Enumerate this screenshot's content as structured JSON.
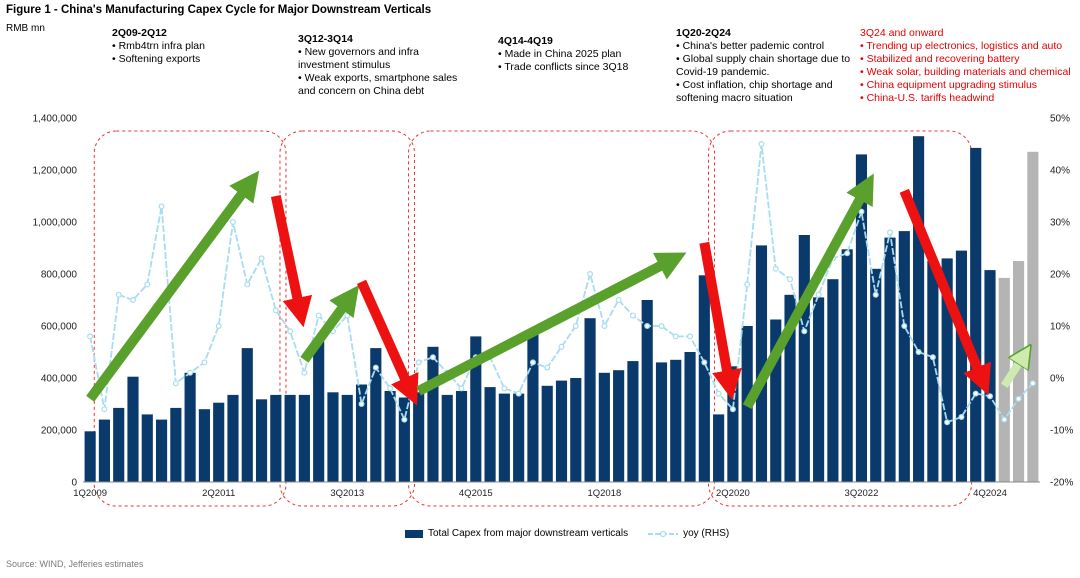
{
  "figure_title": "Figure 1 - China's Manufacturing Capex Cycle for Major Downstream Verticals",
  "unit_label": "RMB mn",
  "source": "Source: WIND, Jefferies estimates",
  "annotations": [
    {
      "heading": "2Q09-2Q12",
      "lines": [
        "• Rmb4trn infra plan",
        "• Softening exports"
      ]
    },
    {
      "heading": "3Q12-3Q14",
      "lines": [
        "• New governors and infra",
        "investment stimulus",
        "• Weak exports, smartphone sales",
        "and concern on China debt"
      ]
    },
    {
      "heading": "4Q14-4Q19",
      "lines": [
        "• Made in China 2025 plan",
        "• Trade conflicts since 3Q18"
      ]
    },
    {
      "heading": "1Q20-2Q24",
      "lines": [
        "• China's better pademic control",
        "• Global supply chain shortage due to",
        "Covid-19 pandemic.",
        "• Cost inflation, chip shortage and",
        "softening macro situation"
      ]
    },
    {
      "heading": "3Q24 and onward",
      "lines": [
        "• Trending up electronics, logistics and auto",
        "• Stabilized and recovering battery",
        "• Weak solar, building materials and chemical",
        "• China equipment upgrading stimulus",
        "• China-U.S. tariffs headwind"
      ]
    }
  ],
  "colors": {
    "bar": "#0a3a6b",
    "bar_forecast": "#b4b4b4",
    "yoy_line": "#a8dcf0",
    "up_arrow": "#5aa02c",
    "down_arrow": "#ee1111",
    "forecast_arrow": "#cdeab0",
    "box": "#ee3333",
    "axis_text": "#222222"
  },
  "legend": {
    "bars": "Total Capex from major downstream verticals",
    "line": "yoy (RHS)"
  },
  "chart_data": {
    "type": "bar",
    "quarters": [
      "1Q2009",
      "2Q2009",
      "3Q2009",
      "4Q2009",
      "1Q2010",
      "2Q2010",
      "3Q2010",
      "4Q2010",
      "1Q2011",
      "2Q2011",
      "3Q2011",
      "4Q2011",
      "1Q2012",
      "2Q2012",
      "3Q2012",
      "4Q2012",
      "1Q2013",
      "2Q2013",
      "3Q2013",
      "4Q2013",
      "1Q2014",
      "2Q2014",
      "3Q2014",
      "4Q2014",
      "1Q2015",
      "2Q2015",
      "3Q2015",
      "4Q2015",
      "1Q2016",
      "2Q2016",
      "3Q2016",
      "4Q2016",
      "1Q2017",
      "2Q2017",
      "3Q2017",
      "4Q2017",
      "1Q2018",
      "2Q2018",
      "3Q2018",
      "4Q2018",
      "1Q2019",
      "2Q2019",
      "3Q2019",
      "4Q2019",
      "1Q2020",
      "2Q2020",
      "3Q2020",
      "4Q2020",
      "1Q2021",
      "2Q2021",
      "3Q2021",
      "4Q2021",
      "1Q2022",
      "2Q2022",
      "3Q2022",
      "4Q2022",
      "1Q2023",
      "2Q2023",
      "3Q2023",
      "4Q2023",
      "1Q2024",
      "2Q2024",
      "3Q2024",
      "4Q2024",
      "1Q2025",
      "2Q2025",
      "3Q2025"
    ],
    "x_tick_labels": [
      "1Q2009",
      "2Q2011",
      "3Q2013",
      "4Q2015",
      "1Q2018",
      "2Q2020",
      "3Q2022",
      "4Q2024"
    ],
    "x_tick_indices": [
      0,
      9,
      18,
      27,
      36,
      45,
      54,
      63
    ],
    "capex": [
      195000,
      240000,
      285000,
      405000,
      260000,
      240000,
      285000,
      420000,
      280000,
      305000,
      335000,
      515000,
      318000,
      335000,
      335000,
      335000,
      540000,
      345000,
      335000,
      375000,
      515000,
      350000,
      325000,
      345000,
      520000,
      335000,
      350000,
      560000,
      365000,
      340000,
      340000,
      570000,
      370000,
      390000,
      400000,
      630000,
      420000,
      430000,
      465000,
      700000,
      460000,
      470000,
      500000,
      795000,
      260000,
      445000,
      600000,
      910000,
      625000,
      720000,
      950000,
      710000,
      780000,
      895000,
      1260000,
      820000,
      940000,
      965000,
      1330000,
      850000,
      860000,
      890000,
      1285000,
      815000,
      785000,
      850000,
      1270000
    ],
    "forecast_start_index": 64,
    "yoy": [
      8,
      -6,
      16,
      15,
      18,
      33,
      -1,
      1,
      3,
      10,
      30,
      18,
      23,
      13,
      9,
      1,
      12,
      9,
      12,
      -5,
      2,
      -2,
      -8,
      3,
      4,
      1,
      -2,
      4,
      4,
      -2,
      -3,
      3,
      2,
      6,
      10,
      20,
      10,
      15,
      12,
      10,
      10,
      8,
      8,
      3,
      -3,
      -6,
      18,
      45,
      21,
      19,
      9,
      16,
      23,
      24,
      32,
      16,
      28,
      10,
      5,
      4,
      -8.5,
      -7.5,
      -3,
      -3.5,
      -8,
      -4,
      -1
    ],
    "y_left": {
      "min": 0,
      "max": 1400000,
      "step": 200000,
      "ticks": [
        "0",
        "200,000",
        "400,000",
        "600,000",
        "800,000",
        "1,000,000",
        "1,200,000",
        "1,400,000"
      ]
    },
    "y_right": {
      "min": -20,
      "max": 50,
      "step": 10,
      "ticks": [
        "-20%",
        "-10%",
        "0%",
        "10%",
        "20%",
        "30%",
        "40%",
        "50%"
      ]
    },
    "phase_boxes": [
      {
        "from": "2Q2009",
        "to": "2Q2012"
      },
      {
        "from": "3Q2012",
        "to": "3Q2014"
      },
      {
        "from": "4Q2014",
        "to": "4Q2019"
      },
      {
        "from": "1Q2020",
        "to": "2Q2024"
      }
    ],
    "trend_arrows": [
      {
        "direction": "up",
        "from": {
          "quarter": "1Q2009",
          "capex": 320000
        },
        "to": {
          "quarter": "1Q2012",
          "capex": 1210000
        }
      },
      {
        "direction": "down",
        "from": {
          "quarter": "2Q2012",
          "capex": 1100000
        },
        "to": {
          "quarter": "4Q2012",
          "capex": 580000
        }
      },
      {
        "direction": "up",
        "from": {
          "quarter": "4Q2012",
          "capex": 470000
        },
        "to": {
          "quarter": "4Q2013",
          "capex": 770000
        }
      },
      {
        "direction": "down",
        "from": {
          "quarter": "4Q2013",
          "capex": 770000
        },
        "to": {
          "quarter": "4Q2014",
          "capex": 280000
        }
      },
      {
        "direction": "up",
        "from": {
          "quarter": "4Q2014",
          "capex": 350000
        },
        "to": {
          "quarter": "3Q2019",
          "capex": 890000
        }
      },
      {
        "direction": "down",
        "from": {
          "quarter": "4Q2019",
          "capex": 920000
        },
        "to": {
          "quarter": "2Q2020",
          "capex": 300000
        }
      },
      {
        "direction": "up",
        "from": {
          "quarter": "3Q2020",
          "capex": 290000
        },
        "to": {
          "quarter": "4Q2022",
          "capex": 1200000
        }
      },
      {
        "direction": "down",
        "from": {
          "quarter": "2Q2023",
          "capex": 1120000
        },
        "to": {
          "quarter": "4Q2024",
          "capex": 320000
        }
      },
      {
        "direction": "forecast",
        "from": {
          "quarter": "1Q2025",
          "capex": 370000
        },
        "to": {
          "quarter": "3Q2025",
          "capex": 540000
        }
      }
    ]
  }
}
